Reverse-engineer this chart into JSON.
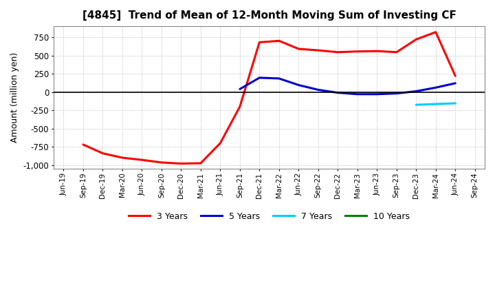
{
  "title": "[4845]  Trend of Mean of 12-Month Moving Sum of Investing CF",
  "ylabel": "Amount (million yen)",
  "background_color": "#ffffff",
  "grid_color": "#aaaaaa",
  "ylim": [
    -1050,
    900
  ],
  "yticks": [
    -1000,
    -750,
    -500,
    -250,
    0,
    250,
    500,
    750
  ],
  "x_labels": [
    "Jun-19",
    "Sep-19",
    "Dec-19",
    "Mar-20",
    "Jun-20",
    "Sep-20",
    "Dec-20",
    "Mar-21",
    "Jun-21",
    "Sep-21",
    "Dec-21",
    "Mar-22",
    "Jun-22",
    "Sep-22",
    "Dec-22",
    "Mar-23",
    "Jun-23",
    "Sep-23",
    "Dec-23",
    "Mar-24",
    "Jun-24",
    "Sep-24"
  ],
  "series": {
    "3yr": {
      "color": "#ff0000",
      "label": "3 Years",
      "x": [
        1,
        2,
        3,
        4,
        5,
        6,
        7,
        8,
        9,
        10,
        11,
        12,
        13,
        14,
        15,
        16,
        17,
        18,
        19,
        20,
        21
      ],
      "y": [
        -720,
        -840,
        -900,
        -930,
        -965,
        -980,
        -975,
        -700,
        -200,
        680,
        700,
        590,
        570,
        545,
        555,
        560,
        545,
        720,
        820,
        220,
        null
      ]
    },
    "5yr": {
      "color": "#0000cc",
      "label": "5 Years",
      "x": [
        9,
        10,
        11,
        12,
        13,
        14,
        15,
        16,
        17,
        18,
        19,
        20,
        21
      ],
      "y": [
        40,
        195,
        185,
        95,
        30,
        -10,
        -30,
        -30,
        -20,
        10,
        60,
        120,
        null
      ]
    },
    "7yr": {
      "color": "#00ccff",
      "label": "7 Years",
      "x": [
        18,
        19,
        20,
        21
      ],
      "y": [
        -175,
        -165,
        -155,
        null
      ]
    },
    "10yr": {
      "color": "#008000",
      "label": "10 Years",
      "x": [],
      "y": []
    }
  },
  "legend_labels": [
    "3 Years",
    "5 Years",
    "7 Years",
    "10 Years"
  ],
  "legend_colors": [
    "#ff0000",
    "#0000cc",
    "#00ccff",
    "#008000"
  ]
}
